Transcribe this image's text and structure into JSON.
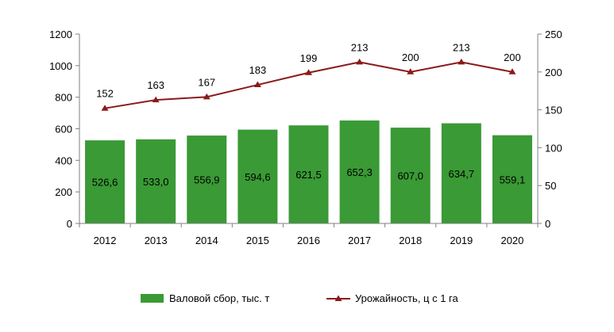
{
  "chart_data": {
    "type": "bar",
    "categories": [
      "2012",
      "2013",
      "2014",
      "2015",
      "2016",
      "2017",
      "2018",
      "2019",
      "2020"
    ],
    "series": [
      {
        "name": "Валовой сбор, тыс. т",
        "kind": "bar",
        "axis": "left",
        "color": "#3a9a35",
        "values": [
          526.6,
          533.0,
          556.9,
          594.6,
          621.5,
          652.3,
          607.0,
          634.7,
          559.1
        ],
        "labels": [
          "526,6",
          "533,0",
          "556,9",
          "594,6",
          "621,5",
          "652,3",
          "607,0",
          "634,7",
          "559,1"
        ]
      },
      {
        "name": "Урожайность, ц с 1 га",
        "kind": "line",
        "axis": "right",
        "color": "#8b1a1a",
        "values": [
          152,
          163,
          167,
          183,
          199,
          213,
          200,
          213,
          200
        ],
        "labels": [
          "152",
          "163",
          "167",
          "183",
          "199",
          "213",
          "200",
          "213",
          "200"
        ]
      }
    ],
    "y_left": {
      "min": 0,
      "max": 1200,
      "ticks": [
        "0",
        "200",
        "400",
        "600",
        "800",
        "1000",
        "1200"
      ]
    },
    "y_right": {
      "min": 0,
      "max": 250,
      "ticks": [
        "0",
        "50",
        "100",
        "150",
        "200",
        "250"
      ]
    },
    "grid": false,
    "legend_position": "bottom"
  }
}
